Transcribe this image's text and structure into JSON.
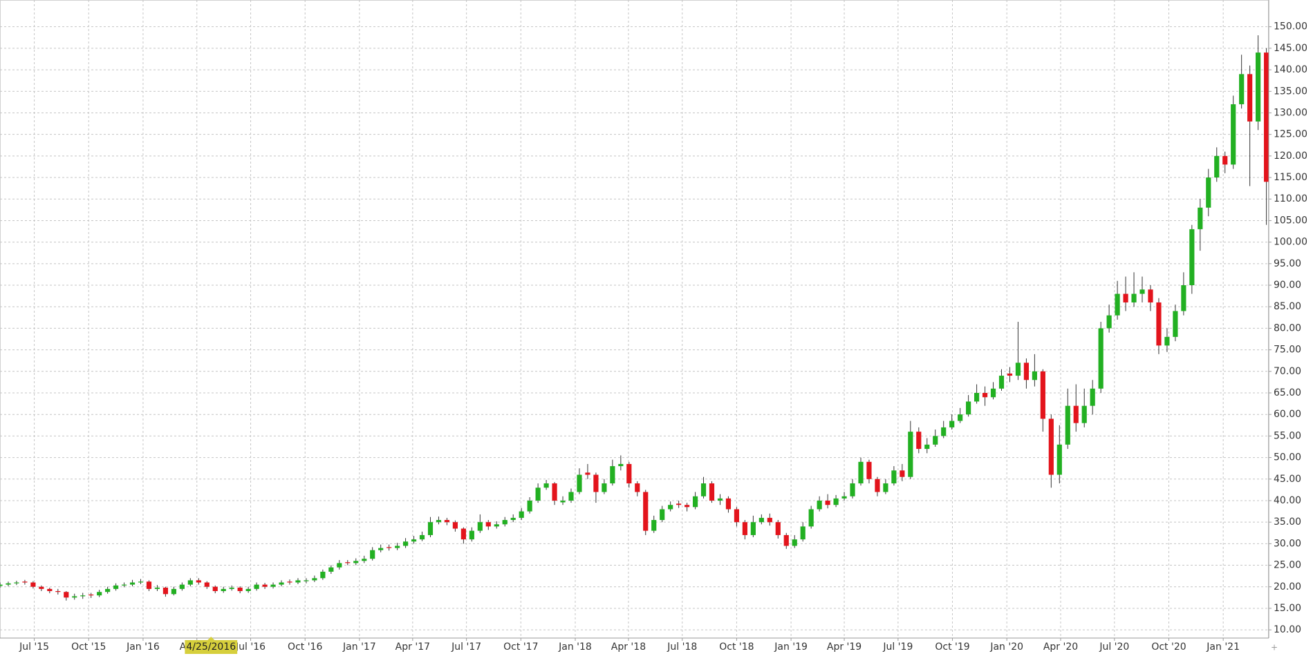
{
  "chart_data": {
    "type": "candlestick",
    "xlim": [
      "2015-05-04",
      "2021-03-19"
    ],
    "ylim": [
      8.1,
      156.2
    ],
    "grid": true,
    "up_color": "#22b022",
    "down_color": "#e3141c",
    "crosshair_x": "2016-04-25",
    "crosshair_label": "4/25/2016",
    "xticks": [
      {
        "value": "2015-07-01",
        "label": "Jul '15"
      },
      {
        "value": "2015-10-01",
        "label": "Oct '15"
      },
      {
        "value": "2016-01-01",
        "label": "Jan '16"
      },
      {
        "value": "2016-04-01",
        "label": "Apr '16"
      },
      {
        "value": "2016-07-01",
        "label": "Jul '16"
      },
      {
        "value": "2016-10-01",
        "label": "Oct '16"
      },
      {
        "value": "2017-01-01",
        "label": "Jan '17"
      },
      {
        "value": "2017-04-01",
        "label": "Apr '17"
      },
      {
        "value": "2017-07-01",
        "label": "Jul '17"
      },
      {
        "value": "2017-10-01",
        "label": "Oct '17"
      },
      {
        "value": "2018-01-01",
        "label": "Jan '18"
      },
      {
        "value": "2018-04-01",
        "label": "Apr '18"
      },
      {
        "value": "2018-07-01",
        "label": "Jul '18"
      },
      {
        "value": "2018-10-01",
        "label": "Oct '18"
      },
      {
        "value": "2019-01-01",
        "label": "Jan '19"
      },
      {
        "value": "2019-04-01",
        "label": "Apr '19"
      },
      {
        "value": "2019-07-01",
        "label": "Jul '19"
      },
      {
        "value": "2019-10-01",
        "label": "Oct '19"
      },
      {
        "value": "2020-01-01",
        "label": "Jan '20"
      },
      {
        "value": "2020-04-01",
        "label": "Apr '20"
      },
      {
        "value": "2020-07-01",
        "label": "Jul '20"
      },
      {
        "value": "2020-10-01",
        "label": "Oct '20"
      },
      {
        "value": "2021-01-01",
        "label": "Jan '21"
      }
    ],
    "yticks": [
      {
        "value": 10,
        "label": "10.00"
      },
      {
        "value": 15,
        "label": "15.00"
      },
      {
        "value": 20,
        "label": "20.00"
      },
      {
        "value": 25,
        "label": "25.00"
      },
      {
        "value": 30,
        "label": "30.00"
      },
      {
        "value": 35,
        "label": "35.00"
      },
      {
        "value": 40,
        "label": "40.00"
      },
      {
        "value": 45,
        "label": "45.00"
      },
      {
        "value": 50,
        "label": "50.00"
      },
      {
        "value": 55,
        "label": "55.00"
      },
      {
        "value": 60,
        "label": "60.00"
      },
      {
        "value": 65,
        "label": "65.00"
      },
      {
        "value": 70,
        "label": "70.00"
      },
      {
        "value": 75,
        "label": "75.00"
      },
      {
        "value": 80,
        "label": "80.00"
      },
      {
        "value": 85,
        "label": "85.00"
      },
      {
        "value": 90,
        "label": "90.00"
      },
      {
        "value": 95,
        "label": "95.00"
      },
      {
        "value": 100,
        "label": "100.00"
      },
      {
        "value": 105,
        "label": "105.00"
      },
      {
        "value": 110,
        "label": "110.00"
      },
      {
        "value": 115,
        "label": "115.00"
      },
      {
        "value": 120,
        "label": "120.00"
      },
      {
        "value": 125,
        "label": "125.00"
      },
      {
        "value": 130,
        "label": "130.00"
      },
      {
        "value": 135,
        "label": "135.00"
      },
      {
        "value": 140,
        "label": "140.00"
      },
      {
        "value": 145,
        "label": "145.00"
      },
      {
        "value": 150,
        "label": "150.00"
      }
    ],
    "x": [
      "2015-05-04",
      "2015-05-18",
      "2015-06-01",
      "2015-06-15",
      "2015-06-29",
      "2015-07-13",
      "2015-07-27",
      "2015-08-10",
      "2015-08-24",
      "2015-09-07",
      "2015-09-21",
      "2015-10-05",
      "2015-10-19",
      "2015-11-02",
      "2015-11-16",
      "2015-11-30",
      "2015-12-14",
      "2015-12-28",
      "2016-01-11",
      "2016-01-25",
      "2016-02-08",
      "2016-02-22",
      "2016-03-07",
      "2016-03-21",
      "2016-04-04",
      "2016-04-18",
      "2016-05-02",
      "2016-05-16",
      "2016-05-30",
      "2016-06-13",
      "2016-06-27",
      "2016-07-11",
      "2016-07-25",
      "2016-08-08",
      "2016-08-22",
      "2016-09-05",
      "2016-09-19",
      "2016-10-03",
      "2016-10-17",
      "2016-10-31",
      "2016-11-14",
      "2016-11-28",
      "2016-12-12",
      "2016-12-26",
      "2017-01-09",
      "2017-01-23",
      "2017-02-06",
      "2017-02-20",
      "2017-03-06",
      "2017-03-20",
      "2017-04-03",
      "2017-04-17",
      "2017-05-01",
      "2017-05-15",
      "2017-05-29",
      "2017-06-12",
      "2017-06-26",
      "2017-07-10",
      "2017-07-24",
      "2017-08-07",
      "2017-08-21",
      "2017-09-04",
      "2017-09-18",
      "2017-10-02",
      "2017-10-16",
      "2017-10-30",
      "2017-11-13",
      "2017-11-27",
      "2017-12-11",
      "2017-12-25",
      "2018-01-08",
      "2018-01-22",
      "2018-02-05",
      "2018-02-19",
      "2018-03-05",
      "2018-03-19",
      "2018-04-02",
      "2018-04-16",
      "2018-04-30",
      "2018-05-14",
      "2018-05-28",
      "2018-06-11",
      "2018-06-25",
      "2018-07-09",
      "2018-07-23",
      "2018-08-06",
      "2018-08-20",
      "2018-09-03",
      "2018-09-17",
      "2018-10-01",
      "2018-10-15",
      "2018-10-29",
      "2018-11-12",
      "2018-11-26",
      "2018-12-10",
      "2018-12-24",
      "2019-01-07",
      "2019-01-21",
      "2019-02-04",
      "2019-02-18",
      "2019-03-04",
      "2019-03-18",
      "2019-04-01",
      "2019-04-15",
      "2019-04-29",
      "2019-05-13",
      "2019-05-27",
      "2019-06-10",
      "2019-06-24",
      "2019-07-08",
      "2019-07-22",
      "2019-08-05",
      "2019-08-19",
      "2019-09-02",
      "2019-09-16",
      "2019-09-30",
      "2019-10-14",
      "2019-10-28",
      "2019-11-11",
      "2019-11-25",
      "2019-12-09",
      "2019-12-23",
      "2020-01-06",
      "2020-01-20",
      "2020-02-03",
      "2020-02-17",
      "2020-03-02",
      "2020-03-16",
      "2020-03-30",
      "2020-04-13",
      "2020-04-27",
      "2020-05-11",
      "2020-05-25",
      "2020-06-08",
      "2020-06-22",
      "2020-07-06",
      "2020-07-20",
      "2020-08-03",
      "2020-08-17",
      "2020-08-31",
      "2020-09-14",
      "2020-09-28",
      "2020-10-12",
      "2020-10-26",
      "2020-11-09",
      "2020-11-23",
      "2020-12-07",
      "2020-12-21",
      "2021-01-04",
      "2021-01-18",
      "2021-02-01",
      "2021-02-15",
      "2021-03-01",
      "2021-03-15"
    ],
    "open": [
      20.2,
      20.5,
      20.8,
      21.2,
      21,
      20,
      19.5,
      19,
      18.8,
      17.5,
      17.8,
      18.2,
      18,
      18.8,
      19.5,
      20.3,
      20.5,
      21,
      21.2,
      19.5,
      19.8,
      18.3,
      19.5,
      20.5,
      21.5,
      21,
      20,
      19,
      19.5,
      19.8,
      19,
      19.5,
      20.5,
      20,
      20.5,
      21.2,
      21,
      21.3,
      21.5,
      22,
      23.5,
      24.5,
      25.7,
      25.5,
      26,
      26.5,
      28.5,
      29.2,
      29,
      29.5,
      30.5,
      31,
      32,
      35,
      35.5,
      35,
      33.5,
      31,
      33,
      35,
      34,
      34.5,
      35.5,
      36,
      37.5,
      40,
      43,
      44,
      39.6,
      40,
      42,
      46.5,
      46,
      42,
      44,
      48,
      48.5,
      44,
      42,
      33,
      35.5,
      38,
      39.3,
      39,
      38.5,
      41,
      44,
      40,
      40.5,
      38,
      35,
      32,
      35,
      36,
      35,
      32,
      29.5,
      31,
      34,
      38,
      40,
      39,
      40.5,
      41,
      44,
      49,
      45,
      42,
      44,
      47,
      45.5,
      56,
      52,
      53,
      55,
      57,
      58.5,
      60,
      63,
      65,
      64,
      66,
      69.5,
      69,
      72,
      68,
      70,
      59,
      46,
      53,
      62,
      58,
      62,
      66,
      80,
      83,
      88,
      86,
      88,
      89,
      86,
      76,
      78,
      84,
      90,
      103,
      108,
      115,
      120,
      118,
      132,
      139,
      128,
      144
    ],
    "high": [
      21,
      21.2,
      21.4,
      21.6,
      21.3,
      20.3,
      19.8,
      19.5,
      19,
      18.4,
      18.6,
      18.6,
      19.3,
      20,
      20.8,
      21,
      21.6,
      21.8,
      21.5,
      20.4,
      20,
      20,
      21,
      22,
      22,
      21.3,
      20.3,
      20,
      20.3,
      20.1,
      20,
      21,
      20.9,
      21,
      21.5,
      21.7,
      22,
      22,
      22.6,
      24,
      25,
      26.2,
      26.2,
      26.6,
      27.2,
      29.2,
      29.8,
      29.8,
      30.2,
      31.3,
      31.8,
      32.8,
      36.2,
      36.3,
      36,
      35.4,
      33.8,
      33.8,
      36.8,
      35.5,
      35.2,
      36.2,
      36.8,
      38.3,
      40.8,
      44,
      44.8,
      44.3,
      41,
      42.8,
      47.5,
      48.5,
      46.5,
      45,
      49.5,
      50.5,
      49,
      44.5,
      42.5,
      36.5,
      38.8,
      39.8,
      40,
      39.5,
      42,
      45.5,
      44.5,
      41.5,
      41,
      38.5,
      35.5,
      36.5,
      36.8,
      37,
      35.5,
      32.5,
      32,
      35,
      38.8,
      41,
      41.5,
      41.3,
      42,
      45,
      50,
      49.5,
      45.5,
      45,
      48,
      48.5,
      58.5,
      57,
      54.5,
      56.5,
      58.5,
      60,
      61.5,
      64.5,
      67,
      66.5,
      67.5,
      70.5,
      71,
      81.5,
      73,
      74,
      70.5,
      60,
      57.5,
      66,
      67,
      66,
      68,
      81.5,
      85.5,
      91,
      92,
      93,
      92,
      90,
      87,
      80,
      85.5,
      93,
      104,
      110,
      117,
      122,
      121,
      134,
      143.5,
      141,
      148,
      145
    ],
    "low": [
      19.8,
      20.1,
      20.4,
      20.5,
      19.6,
      19,
      18.5,
      18.2,
      16.8,
      17,
      17.2,
      17.4,
      17.6,
      18.4,
      19.1,
      19.9,
      20.1,
      20.6,
      19,
      19,
      17.7,
      18,
      19.1,
      20.1,
      20.5,
      19.5,
      18.5,
      18.6,
      19.1,
      18.5,
      18.6,
      19.1,
      19.5,
      19.6,
      20.1,
      20.5,
      20.6,
      20.8,
      21.1,
      21.6,
      23,
      24,
      25,
      25,
      25.5,
      26.1,
      28,
      28.4,
      28.5,
      29,
      30,
      30.6,
      31.5,
      34.5,
      34.3,
      32.8,
      30,
      30.5,
      32.5,
      33.2,
      33.5,
      34,
      35,
      35.5,
      37,
      39.5,
      42.5,
      39,
      39,
      39.5,
      41.5,
      45,
      39.5,
      41.5,
      43.5,
      47,
      43,
      41,
      32,
      32.5,
      35,
      37.5,
      38.3,
      37.5,
      38,
      40.5,
      39.5,
      39,
      37.2,
      34,
      31,
      31.5,
      34.5,
      34.2,
      31.2,
      28.8,
      29,
      30.5,
      33.5,
      37.5,
      38.2,
      38.5,
      40,
      40.5,
      43.5,
      44,
      41,
      41.5,
      43.5,
      44.5,
      45,
      51,
      51,
      52.5,
      54.5,
      56.5,
      58,
      59.5,
      62.5,
      62,
      63.5,
      65.5,
      67.5,
      68,
      66,
      66.5,
      56,
      43,
      44,
      52,
      56,
      57,
      60,
      65,
      79,
      82,
      84,
      85,
      86,
      84,
      74,
      74.5,
      77,
      83,
      88,
      98,
      106,
      114,
      116,
      117,
      131,
      113,
      126,
      104
    ],
    "close": [
      20.5,
      20.8,
      21,
      21,
      20,
      19.5,
      19,
      18.8,
      17.5,
      17.8,
      18,
      18,
      18.8,
      19.5,
      20.3,
      20.5,
      21,
      21.2,
      19.5,
      19.8,
      18.3,
      19.5,
      20.5,
      21.5,
      21,
      20,
      19,
      19.5,
      19.8,
      19,
      19.5,
      20.5,
      20,
      20.5,
      21,
      21,
      21.5,
      21.5,
      22,
      23.5,
      24.5,
      25.5,
      25.5,
      26,
      26.5,
      28.5,
      29,
      29,
      29.5,
      30.5,
      31,
      32,
      35,
      35.5,
      35,
      33.5,
      31,
      33,
      35,
      34,
      34.5,
      35.5,
      36,
      37.5,
      40,
      43,
      44,
      40,
      40,
      42,
      46,
      46,
      42,
      44,
      48,
      48.5,
      44,
      42,
      33,
      35.5,
      38,
      39,
      39,
      38.5,
      41,
      44,
      40,
      40.5,
      38,
      35,
      32,
      35,
      36,
      35,
      32,
      29.5,
      31,
      34,
      38,
      40,
      39,
      40.5,
      41,
      44,
      49,
      45,
      42,
      44,
      47,
      45.5,
      56,
      52,
      53,
      55,
      57,
      58.5,
      60,
      63,
      65,
      64,
      66,
      69,
      69,
      72,
      68,
      70,
      59,
      46,
      53,
      62,
      58,
      62,
      66,
      80,
      83,
      88,
      86,
      88,
      89,
      86,
      76,
      78,
      84,
      90,
      103,
      108,
      115,
      120,
      118,
      132,
      139,
      128,
      144,
      114
    ]
  }
}
